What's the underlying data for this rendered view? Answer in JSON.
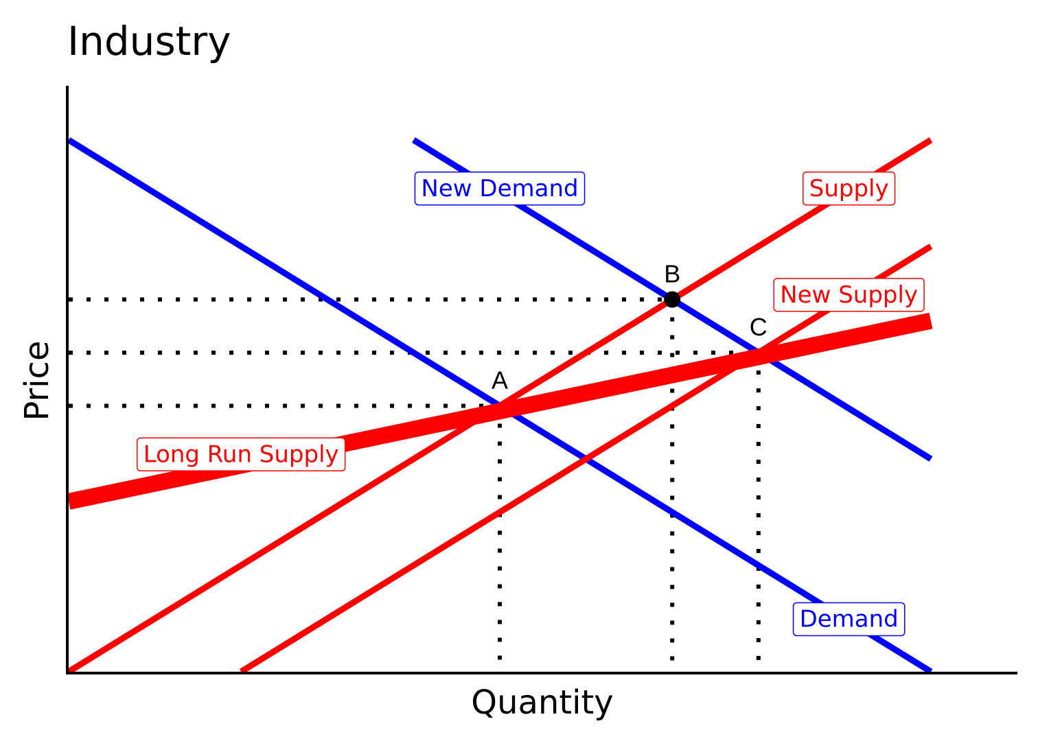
{
  "chart_data": {
    "type": "line",
    "title": "Industry",
    "xlabel": "Quantity",
    "ylabel": "Price",
    "xlim": [
      0,
      10
    ],
    "ylim": [
      0,
      10
    ],
    "colors": {
      "demand": "#0000ff",
      "supply": "#ff0000",
      "axis": "#000000"
    },
    "series": [
      {
        "name": "Demand",
        "color": "#0000ff",
        "width": 9,
        "points": [
          [
            0,
            10
          ],
          [
            10,
            0
          ]
        ]
      },
      {
        "name": "New Demand",
        "color": "#0000ff",
        "width": 9,
        "points": [
          [
            4,
            10
          ],
          [
            10,
            4
          ]
        ]
      },
      {
        "name": "Supply",
        "color": "#ff0000",
        "width": 9,
        "points": [
          [
            0,
            0
          ],
          [
            10,
            10
          ]
        ]
      },
      {
        "name": "New Supply",
        "color": "#ff0000",
        "width": 9,
        "points": [
          [
            2,
            0
          ],
          [
            10,
            8
          ]
        ]
      },
      {
        "name": "Long Run Supply",
        "color": "#ff0000",
        "width": 24,
        "points": [
          [
            0,
            3.2
          ],
          [
            10,
            6.6
          ]
        ]
      }
    ],
    "curve_labels": [
      {
        "text": "New Demand",
        "color": "#0000ff",
        "at": [
          5,
          9.1
        ]
      },
      {
        "text": "Supply",
        "color": "#ff0000",
        "at": [
          9.05,
          9.1
        ]
      },
      {
        "text": "New Supply",
        "color": "#ff0000",
        "at": [
          9.05,
          7.1
        ]
      },
      {
        "text": "Long Run Supply",
        "color": "#ff0000",
        "at": [
          2,
          4.1
        ]
      },
      {
        "text": "Demand",
        "color": "#0000ff",
        "at": [
          9.05,
          1
        ]
      }
    ],
    "points": [
      {
        "label": "A",
        "x": 5,
        "y": 5,
        "marker": false
      },
      {
        "label": "B",
        "x": 7,
        "y": 7,
        "marker": true
      },
      {
        "label": "C",
        "x": 8,
        "y": 6,
        "marker": false
      }
    ],
    "guides": {
      "style": "dotted",
      "color": "#000000"
    }
  }
}
